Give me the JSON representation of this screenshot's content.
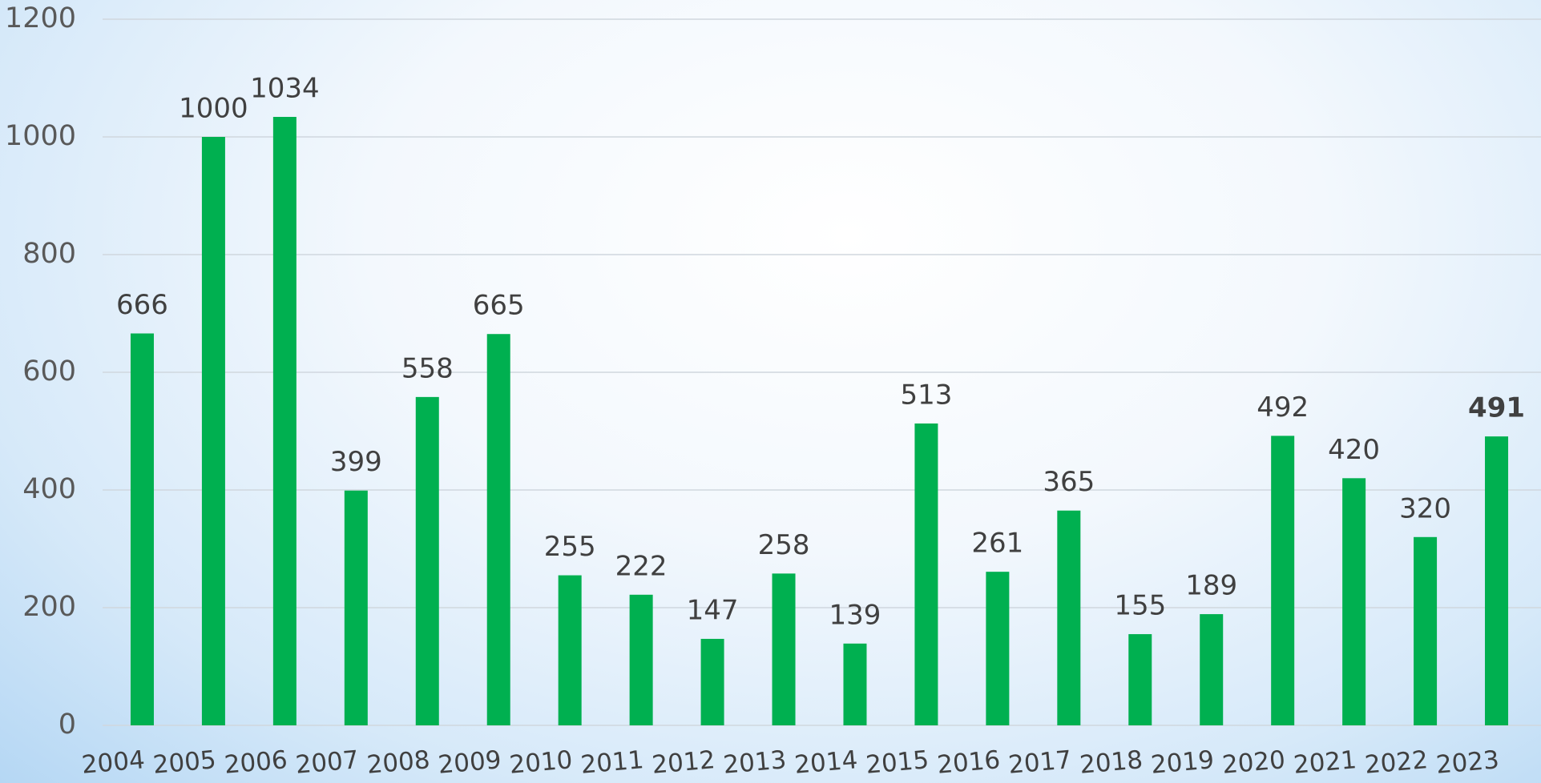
{
  "chart_data": {
    "type": "bar",
    "categories": [
      "2004",
      "2005",
      "2006",
      "2007",
      "2008",
      "2009",
      "2010",
      "2011",
      "2012",
      "2013",
      "2014",
      "2015",
      "2016",
      "2017",
      "2018",
      "2019",
      "2020",
      "2021",
      "2022",
      "2023"
    ],
    "values": [
      666,
      1000,
      1034,
      399,
      558,
      665,
      255,
      222,
      147,
      258,
      139,
      513,
      261,
      365,
      155,
      189,
      492,
      420,
      320,
      491
    ],
    "color": "#00b050",
    "ylim": [
      0,
      1200
    ],
    "yticks": [
      0,
      200,
      400,
      600,
      800,
      1000,
      1200
    ],
    "grid": true
  }
}
